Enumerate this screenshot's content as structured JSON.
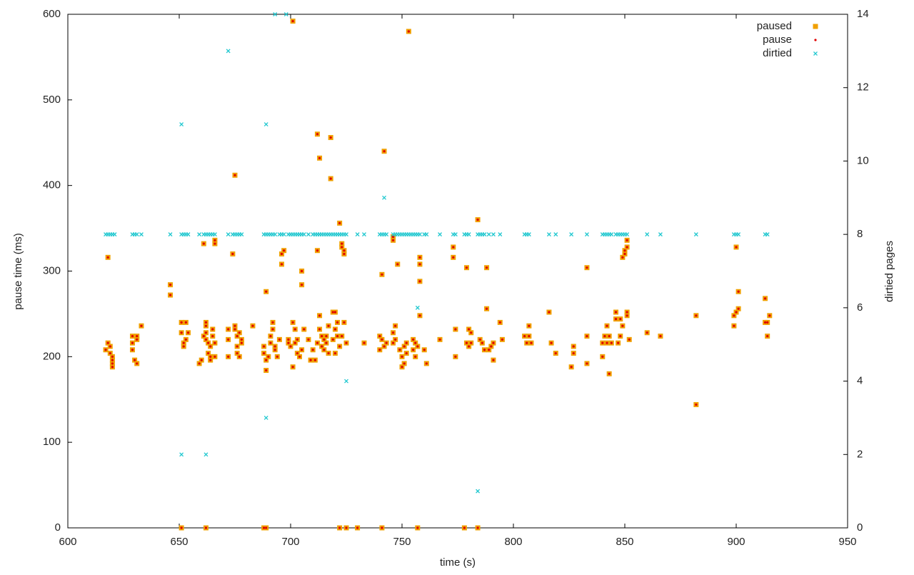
{
  "chart_data": {
    "type": "scatter",
    "xlabel": "time (s)",
    "ylabel": "pause time (ms)",
    "y2label": "dirtied pages",
    "xlim": [
      600,
      950
    ],
    "xticks": [
      600,
      650,
      700,
      750,
      800,
      850,
      900,
      950
    ],
    "ylim": [
      0,
      600
    ],
    "yticks": [
      0,
      100,
      200,
      300,
      400,
      500,
      600
    ],
    "y2lim": [
      0,
      14
    ],
    "y2ticks": [
      0,
      2,
      4,
      6,
      8,
      10,
      12,
      14
    ],
    "legend": "top-right",
    "series": [
      {
        "name": "paused",
        "color": "#f0a000",
        "marker": "square",
        "x": [
          618,
          617,
          618,
          619,
          619,
          620,
          620,
          620,
          620,
          629,
          629,
          629,
          630,
          631,
          631,
          631,
          633,
          646,
          646,
          651,
          651,
          651,
          652,
          652,
          653,
          653,
          654,
          659,
          660,
          661,
          661,
          662,
          662,
          662,
          662,
          662,
          663,
          663,
          664,
          664,
          664,
          665,
          665,
          666,
          666,
          666,
          666,
          672,
          672,
          672,
          674,
          675,
          675,
          675,
          676,
          676,
          676,
          677,
          677,
          678,
          678,
          683,
          688,
          688,
          688,
          689,
          689,
          689,
          689,
          690,
          691,
          691,
          692,
          692,
          693,
          693,
          694,
          695,
          696,
          696,
          697,
          699,
          699,
          700,
          701,
          701,
          701,
          702,
          702,
          703,
          703,
          704,
          705,
          705,
          705,
          706,
          708,
          709,
          710,
          711,
          712,
          712,
          712,
          713,
          713,
          713,
          714,
          714,
          715,
          715,
          716,
          716,
          717,
          717,
          718,
          718,
          719,
          719,
          720,
          720,
          720,
          721,
          721,
          722,
          722,
          722,
          723,
          723,
          723,
          724,
          724,
          724,
          725,
          725,
          730,
          733,
          740,
          740,
          741,
          741,
          741,
          742,
          742,
          743,
          746,
          746,
          746,
          746,
          747,
          747,
          748,
          749,
          750,
          750,
          751,
          751,
          752,
          752,
          753,
          755,
          755,
          756,
          756,
          757,
          757,
          758,
          758,
          758,
          758,
          760,
          761,
          767,
          773,
          773,
          774,
          774,
          778,
          779,
          779,
          780,
          780,
          781,
          781,
          784,
          784,
          785,
          786,
          787,
          788,
          788,
          789,
          790,
          791,
          791,
          794,
          795,
          805,
          806,
          807,
          807,
          808,
          816,
          817,
          819,
          826,
          827,
          827,
          833,
          833,
          833,
          840,
          840,
          841,
          842,
          842,
          843,
          843,
          844,
          846,
          846,
          847,
          848,
          848,
          849,
          849,
          850,
          850,
          851,
          851,
          851,
          851,
          852,
          860,
          866,
          882,
          882,
          899,
          899,
          900,
          900,
          901,
          901,
          913,
          913,
          914,
          914,
          915
        ],
        "values": [
          316,
          208,
          216,
          212,
          204,
          200,
          196,
          192,
          188,
          224,
          216,
          208,
          196,
          192,
          220,
          224,
          236,
          284,
          272,
          0,
          240,
          228,
          216,
          212,
          240,
          220,
          228,
          192,
          196,
          332,
          224,
          240,
          236,
          228,
          220,
          0,
          204,
          216,
          200,
          196,
          212,
          232,
          224,
          332,
          336,
          200,
          216,
          232,
          220,
          200,
          320,
          412,
          236,
          232,
          224,
          212,
          204,
          200,
          228,
          216,
          220,
          236,
          0,
          212,
          204,
          276,
          196,
          184,
          0,
          200,
          216,
          224,
          240,
          232,
          208,
          212,
          200,
          220,
          320,
          308,
          324,
          216,
          220,
          212,
          188,
          592,
          240,
          232,
          216,
          204,
          220,
          200,
          300,
          284,
          208,
          232,
          220,
          196,
          208,
          196,
          324,
          216,
          460,
          432,
          248,
          232,
          224,
          212,
          220,
          208,
          216,
          224,
          236,
          204,
          456,
          408,
          252,
          220,
          252,
          232,
          204,
          240,
          224,
          356,
          0,
          212,
          332,
          328,
          224,
          320,
          324,
          240,
          216,
          0,
          0,
          216,
          224,
          208,
          220,
          296,
          0,
          212,
          440,
          216,
          336,
          340,
          228,
          216,
          236,
          220,
          308,
          208,
          200,
          188,
          192,
          212,
          204,
          216,
          580,
          208,
          220,
          216,
          200,
          212,
          0,
          316,
          308,
          288,
          248,
          208,
          192,
          220,
          328,
          316,
          200,
          232,
          0,
          304,
          216,
          212,
          232,
          228,
          216,
          360,
          0,
          220,
          216,
          208,
          256,
          304,
          208,
          212,
          196,
          216,
          240,
          220,
          224,
          216,
          224,
          236,
          216,
          252,
          216,
          204,
          188,
          212,
          204,
          304,
          224,
          192,
          200,
          216,
          224,
          216,
          236,
          180,
          224,
          216,
          252,
          244,
          216,
          244,
          224,
          236,
          316,
          320,
          324,
          336,
          328,
          248,
          252,
          220,
          228,
          224,
          248,
          144,
          236,
          248,
          252,
          328,
          256,
          276,
          240,
          268,
          224,
          240,
          248
        ]
      },
      {
        "name": "pause",
        "color": "#e00000",
        "marker": "dot",
        "x": [
          618,
          617,
          618,
          619,
          619,
          620,
          620,
          620,
          620,
          629,
          629,
          629,
          630,
          631,
          631,
          631,
          633,
          646,
          646,
          651,
          651,
          651,
          652,
          652,
          653,
          653,
          654,
          659,
          660,
          661,
          661,
          662,
          662,
          662,
          662,
          662,
          663,
          663,
          664,
          664,
          664,
          665,
          665,
          666,
          666,
          666,
          666,
          672,
          672,
          672,
          674,
          675,
          675,
          675,
          676,
          676,
          676,
          677,
          677,
          678,
          678,
          683,
          688,
          688,
          688,
          689,
          689,
          689,
          689,
          690,
          691,
          691,
          692,
          692,
          693,
          693,
          694,
          695,
          696,
          696,
          697,
          699,
          699,
          700,
          701,
          701,
          701,
          702,
          702,
          703,
          703,
          704,
          705,
          705,
          705,
          706,
          708,
          709,
          710,
          711,
          712,
          712,
          712,
          713,
          713,
          713,
          714,
          714,
          715,
          715,
          716,
          716,
          717,
          717,
          718,
          718,
          719,
          719,
          720,
          720,
          720,
          721,
          721,
          722,
          722,
          722,
          723,
          723,
          723,
          724,
          724,
          724,
          725,
          725,
          730,
          733,
          740,
          740,
          741,
          741,
          741,
          742,
          742,
          743,
          746,
          746,
          746,
          746,
          747,
          747,
          748,
          749,
          750,
          750,
          751,
          751,
          752,
          752,
          753,
          755,
          755,
          756,
          756,
          757,
          757,
          758,
          758,
          758,
          758,
          760,
          761,
          767,
          773,
          773,
          774,
          774,
          778,
          779,
          779,
          780,
          780,
          781,
          781,
          784,
          784,
          785,
          786,
          787,
          788,
          788,
          789,
          790,
          791,
          791,
          794,
          795,
          805,
          806,
          807,
          807,
          808,
          816,
          817,
          819,
          826,
          827,
          827,
          833,
          833,
          833,
          840,
          840,
          841,
          842,
          842,
          843,
          843,
          844,
          846,
          846,
          847,
          848,
          848,
          849,
          849,
          850,
          850,
          851,
          851,
          851,
          851,
          852,
          860,
          866,
          882,
          882,
          899,
          899,
          900,
          900,
          901,
          901,
          913,
          913,
          914,
          914,
          915
        ],
        "values": [
          316,
          208,
          216,
          212,
          204,
          200,
          196,
          192,
          188,
          224,
          216,
          208,
          196,
          192,
          220,
          224,
          236,
          284,
          272,
          0,
          240,
          228,
          216,
          212,
          240,
          220,
          228,
          192,
          196,
          332,
          224,
          240,
          236,
          228,
          220,
          0,
          204,
          216,
          200,
          196,
          212,
          232,
          224,
          332,
          336,
          200,
          216,
          232,
          220,
          200,
          320,
          412,
          236,
          232,
          224,
          212,
          204,
          200,
          228,
          216,
          220,
          236,
          0,
          212,
          204,
          276,
          196,
          184,
          0,
          200,
          216,
          224,
          240,
          232,
          208,
          212,
          200,
          220,
          320,
          308,
          324,
          216,
          220,
          212,
          188,
          592,
          240,
          232,
          216,
          204,
          220,
          200,
          300,
          284,
          208,
          232,
          220,
          196,
          208,
          196,
          324,
          216,
          460,
          432,
          248,
          232,
          224,
          212,
          220,
          208,
          216,
          224,
          236,
          204,
          456,
          408,
          252,
          220,
          252,
          232,
          204,
          240,
          224,
          356,
          0,
          212,
          332,
          328,
          224,
          320,
          324,
          240,
          216,
          0,
          0,
          216,
          224,
          208,
          220,
          296,
          0,
          212,
          440,
          216,
          336,
          340,
          228,
          216,
          236,
          220,
          308,
          208,
          200,
          188,
          192,
          212,
          204,
          216,
          580,
          208,
          220,
          216,
          200,
          212,
          0,
          316,
          308,
          288,
          248,
          208,
          192,
          220,
          328,
          316,
          200,
          232,
          0,
          304,
          216,
          212,
          232,
          228,
          216,
          360,
          0,
          220,
          216,
          208,
          256,
          304,
          208,
          212,
          196,
          216,
          240,
          220,
          224,
          216,
          224,
          236,
          216,
          252,
          216,
          204,
          188,
          212,
          204,
          304,
          224,
          192,
          200,
          216,
          224,
          216,
          236,
          180,
          224,
          216,
          252,
          244,
          216,
          244,
          224,
          236,
          316,
          320,
          324,
          336,
          328,
          248,
          252,
          220,
          228,
          224,
          248,
          144,
          236,
          248,
          252,
          328,
          256,
          276,
          240,
          268,
          224,
          240,
          248
        ]
      },
      {
        "name": "dirtied",
        "color": "#22c8d0",
        "marker": "cross",
        "axis": "y2",
        "x": [
          617,
          618,
          619,
          620,
          621,
          629,
          630,
          631,
          633,
          646,
          651,
          652,
          653,
          654,
          659,
          661,
          662,
          663,
          664,
          665,
          666,
          672,
          674,
          675,
          676,
          677,
          678,
          688,
          689,
          690,
          691,
          692,
          693,
          695,
          696,
          697,
          699,
          700,
          701,
          702,
          703,
          704,
          705,
          706,
          708,
          710,
          711,
          712,
          713,
          714,
          715,
          716,
          717,
          718,
          719,
          720,
          721,
          722,
          723,
          724,
          725,
          730,
          733,
          740,
          741,
          742,
          743,
          746,
          747,
          748,
          749,
          750,
          751,
          752,
          753,
          754,
          755,
          756,
          757,
          758,
          760,
          761,
          767,
          773,
          774,
          778,
          779,
          780,
          784,
          785,
          786,
          787,
          789,
          791,
          794,
          805,
          806,
          807,
          816,
          819,
          826,
          833,
          840,
          841,
          842,
          843,
          844,
          846,
          847,
          848,
          849,
          850,
          851,
          860,
          866,
          882,
          899,
          900,
          901,
          913,
          914,
          651,
          651,
          662,
          672,
          689,
          689,
          693,
          698,
          725,
          742,
          757,
          784
        ],
        "values": [
          8,
          8,
          8,
          8,
          8,
          8,
          8,
          8,
          8,
          8,
          8,
          8,
          8,
          8,
          8,
          8,
          8,
          8,
          8,
          8,
          8,
          8,
          8,
          8,
          8,
          8,
          8,
          8,
          8,
          8,
          8,
          8,
          8,
          8,
          8,
          8,
          8,
          8,
          8,
          8,
          8,
          8,
          8,
          8,
          8,
          8,
          8,
          8,
          8,
          8,
          8,
          8,
          8,
          8,
          8,
          8,
          8,
          8,
          8,
          8,
          8,
          8,
          8,
          8,
          8,
          8,
          8,
          8,
          8,
          8,
          8,
          8,
          8,
          8,
          8,
          8,
          8,
          8,
          8,
          8,
          8,
          8,
          8,
          8,
          8,
          8,
          8,
          8,
          8,
          8,
          8,
          8,
          8,
          8,
          8,
          8,
          8,
          8,
          8,
          8,
          8,
          8,
          8,
          8,
          8,
          8,
          8,
          8,
          8,
          8,
          8,
          8,
          8,
          8,
          8,
          8,
          8,
          8,
          8,
          8,
          8,
          11,
          2,
          2,
          13,
          11,
          3,
          14,
          14,
          4,
          9,
          6,
          1
        ]
      }
    ]
  }
}
